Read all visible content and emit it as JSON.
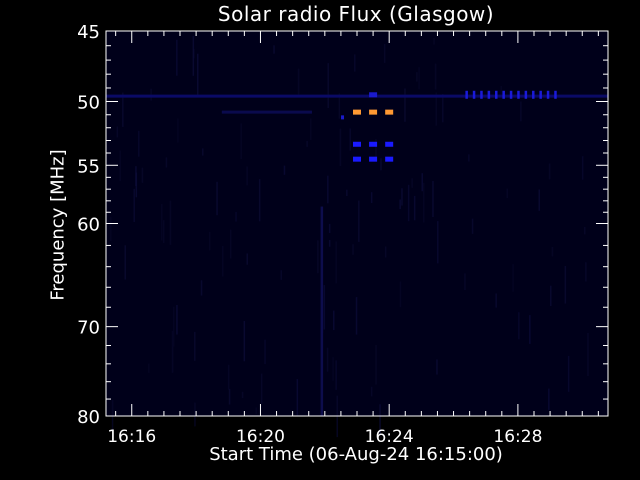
{
  "chart_data": {
    "type": "heatmap",
    "title": "Solar radio Flux (Glasgow)",
    "xlabel": "Start Time (06-Aug-24 16:15:00)",
    "ylabel": "Frequency [MHz]",
    "x_unit": "minutes after 16:15:00",
    "xlim": [
      0.2,
      15.8
    ],
    "ylim": [
      80,
      45
    ],
    "y_scale": "log",
    "x_ticks": [
      {
        "value": 1,
        "label": "16:16"
      },
      {
        "value": 5,
        "label": "16:20"
      },
      {
        "value": 9,
        "label": "16:24"
      },
      {
        "value": 13,
        "label": "16:28"
      }
    ],
    "y_ticks": [
      {
        "value": 45,
        "label": "45"
      },
      {
        "value": 50,
        "label": "50"
      },
      {
        "value": 55,
        "label": "55"
      },
      {
        "value": 60,
        "label": "60"
      },
      {
        "value": 70,
        "label": "70"
      },
      {
        "value": 80,
        "label": "80"
      }
    ],
    "background_color": "#00001a",
    "grid": false,
    "features": [
      {
        "kind": "burst",
        "color": "#ff9933",
        "times": [
          8.0,
          8.5,
          9.0
        ],
        "frequency": 50.8
      },
      {
        "kind": "burst",
        "color": "#1a1aff",
        "times": [
          8.0,
          8.5,
          9.0
        ],
        "frequency": 53.3
      },
      {
        "kind": "burst",
        "color": "#1a1aff",
        "times": [
          8.0,
          8.5,
          9.0
        ],
        "frequency": 54.5
      },
      {
        "kind": "burst",
        "color": "#1a1acc",
        "times": [
          8.5
        ],
        "frequency": 49.5
      },
      {
        "kind": "comb",
        "color": "#1a1ad9",
        "times": [
          11.4,
          11.63,
          11.86,
          12.09,
          12.32,
          12.55,
          12.78,
          13.01,
          13.24,
          13.47,
          13.7,
          13.93,
          14.16
        ],
        "frequency": 49.5
      },
      {
        "kind": "band",
        "color": "#0a0a66",
        "x_range": [
          0.2,
          15.8
        ],
        "frequency": 49.6
      },
      {
        "kind": "band",
        "color": "#0a0a4d",
        "x_range": [
          3.8,
          6.6
        ],
        "frequency": 50.8
      },
      {
        "kind": "column",
        "color": "#0d0d4d",
        "time": 6.9,
        "y_range": [
          58.5,
          80
        ]
      },
      {
        "kind": "point",
        "color": "#1a1acc",
        "time": 7.55,
        "frequency": 51.2
      }
    ]
  }
}
